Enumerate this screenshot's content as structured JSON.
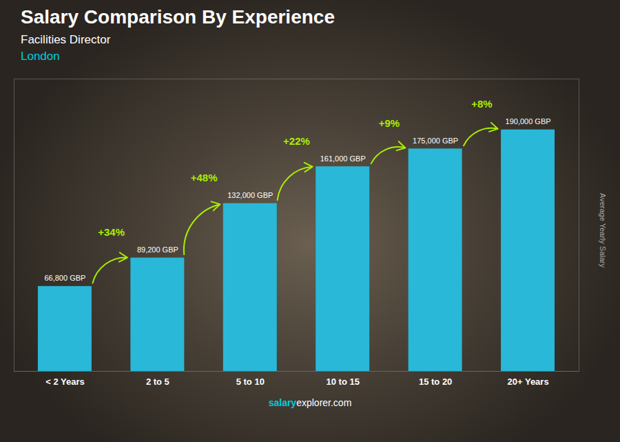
{
  "chart_data": {
    "type": "bar",
    "title": "Salary Comparison By Experience",
    "subtitle": "Facilities Director",
    "ylabel": "Average Yearly Salary",
    "categories": [
      "< 2 Years",
      "2 to 5",
      "5 to 10",
      "10 to 15",
      "15 to 20",
      "20+ Years"
    ],
    "values": [
      66800,
      89200,
      132000,
      161000,
      175000,
      190000
    ],
    "value_labels": [
      "66,800 GBP",
      "89,200 GBP",
      "132,000 GBP",
      "161,000 GBP",
      "175,000 GBP",
      "190,000 GBP"
    ],
    "data_labels": true,
    "color": "#29B8D8",
    "ylim": [
      0,
      230000
    ],
    "tick_labels": "x",
    "grid": false,
    "annotations": [
      {
        "text": "+34%",
        "from": "< 2 Years",
        "to": "2 to 5",
        "color": "#AAEE00"
      },
      {
        "text": "+48%",
        "from": "2 to 5",
        "to": "5 to 10",
        "color": "#AAEE00"
      },
      {
        "text": "+22%",
        "from": "5 to 10",
        "to": "10 to 15",
        "color": "#AAEE00"
      },
      {
        "text": "+9%",
        "from": "10 to 15",
        "to": "15 to 20",
        "color": "#AAEE00"
      },
      {
        "text": "+8%",
        "from": "15 to 20",
        "to": "20+ Years",
        "color": "#AAEE00"
      },
      {
        "text": "London",
        "color": "#00CCDD"
      },
      {
        "text": "salary",
        "color": "#00CCDD"
      },
      {
        "text": "explorer.com",
        "color": "#FFFFFF"
      }
    ]
  }
}
